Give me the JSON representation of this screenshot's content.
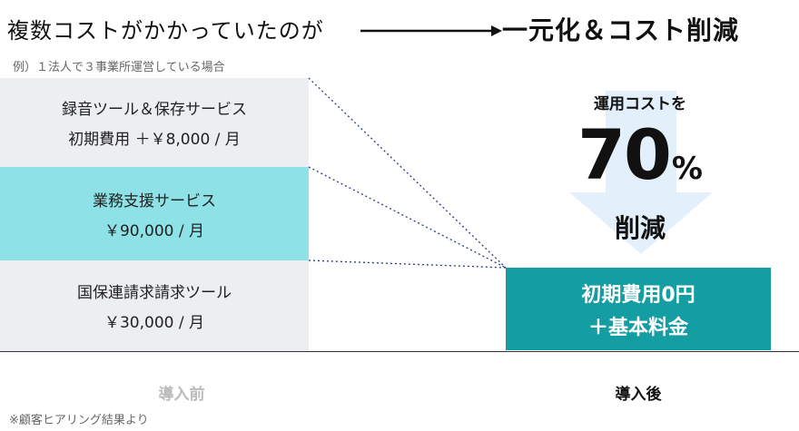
{
  "header": {
    "title_before": "複数コストがかかっていたのが",
    "title_after": "一元化＆コスト削減",
    "example_note": "例）１法人で３事業所運営している場合"
  },
  "before_items": [
    {
      "line1": "録音ツール＆保存サービス",
      "line2": "初期費用 ＋￥8,000 / 月"
    },
    {
      "line1": "業務支援サービス",
      "line2": "￥90,000 / 月"
    },
    {
      "line1": "国保連請求請求ツール",
      "line2": "￥30,000 / 月"
    }
  ],
  "reduction": {
    "prefix": "運用コストを",
    "value": "70",
    "unit": "%",
    "suffix": "削減"
  },
  "after_box": {
    "line1": "初期費用0円",
    "line2": "＋基本料金"
  },
  "labels": {
    "before": "導入前",
    "after": "導入後"
  },
  "footnote": "※顧客ヒアリング結果より",
  "colors": {
    "box_gray": "#eceef1",
    "box_cyan": "#8ee1e6",
    "after_teal": "#149ea3",
    "arrow_light_blue": "#e3f0fb",
    "connector_navy": "#2a3a8a"
  }
}
